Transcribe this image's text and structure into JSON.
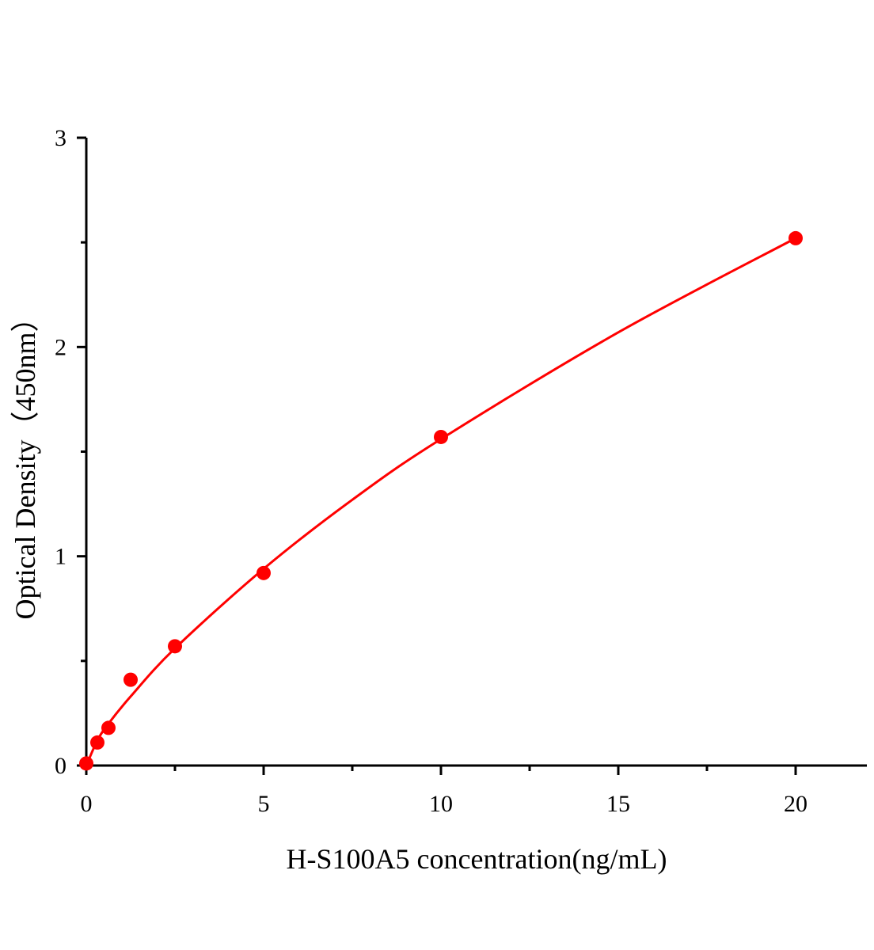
{
  "chart_data": {
    "type": "scatter",
    "title": "",
    "xlabel": "H-S100A5 concentration(ng/mL)",
    "ylabel": "Optical Density（450nm）",
    "xlim": [
      0,
      22
    ],
    "ylim": [
      0,
      3
    ],
    "xticks": [
      0,
      5,
      10,
      15,
      20
    ],
    "yticks": [
      0,
      1,
      2,
      3
    ],
    "grid": false,
    "color": "#ff0000",
    "points": {
      "x": [
        0,
        0.3125,
        0.625,
        1.25,
        2.5,
        5,
        10,
        20
      ],
      "y": [
        0.01,
        0.11,
        0.18,
        0.41,
        0.57,
        0.92,
        1.57,
        2.52
      ]
    },
    "fit_curve": {
      "x": [
        0,
        0.3125,
        0.625,
        1.25,
        2.5,
        5,
        7.5,
        10,
        15,
        20
      ],
      "y": [
        0,
        0.12,
        0.2,
        0.33,
        0.56,
        0.94,
        1.27,
        1.56,
        2.07,
        2.52
      ]
    }
  }
}
